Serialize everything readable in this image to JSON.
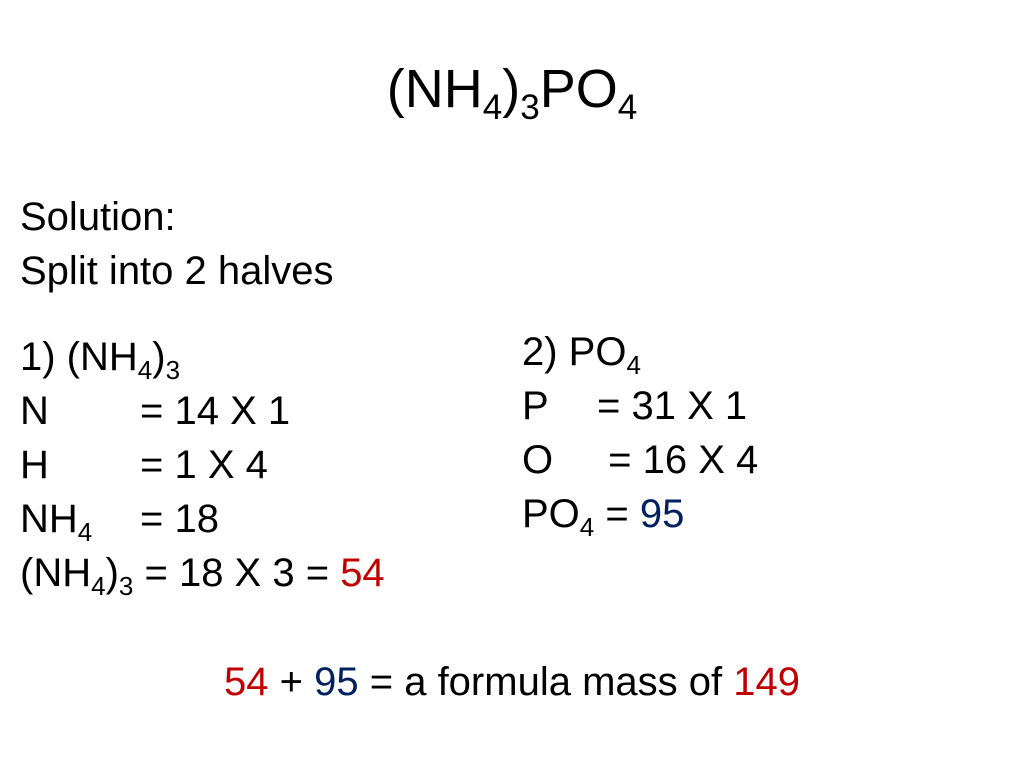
{
  "colors": {
    "text": "#000000",
    "red": "#c00000",
    "blue": "#002060",
    "background": "#ffffff"
  },
  "title": {
    "part1": "(NH",
    "sub1": "4",
    "part2": ")",
    "sub2": "3",
    "part3": "PO",
    "sub3": "4"
  },
  "intro": {
    "line1": "Solution:",
    "line2": "Split into 2 halves"
  },
  "left": {
    "h_pre": "1) (NH",
    "h_sub1": "4",
    "h_mid": ")",
    "h_sub2": "3",
    "l1_el": "N",
    "l1_val": "= 14 X 1",
    "l2_el": "H",
    "l2_val": "= 1 X 4",
    "l3_pre": "NH",
    "l3_sub": "4",
    "l3_val": "= 18",
    "l4_pre": "(NH",
    "l4_sub1": "4",
    "l4_mid": ")",
    "l4_sub2": "3",
    "l4_eq": " = 18 X 3 = ",
    "l4_res": "54"
  },
  "right": {
    "h_pre": "2) PO",
    "h_sub": "4",
    "l1_el": "P",
    "l1_val": "= 31 X 1",
    "l2_el": "O",
    "l2_val": " = 16 X 4",
    "l3_pre": "PO",
    "l3_sub": "4",
    "l3_eq": " = ",
    "l3_res": "95"
  },
  "bottom": {
    "v1": "54",
    "plus": " + ",
    "v2": "95",
    "eq": " = a formula mass of ",
    "res": "149"
  }
}
